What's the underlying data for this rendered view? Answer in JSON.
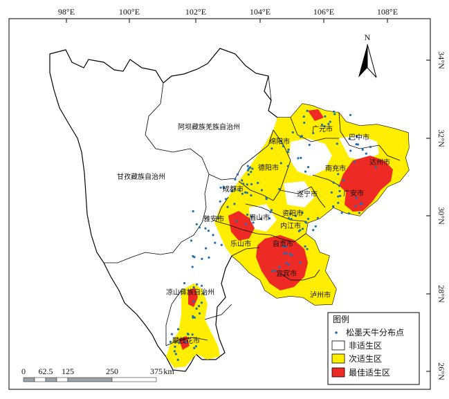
{
  "axes": {
    "top_ticks": [
      "98°E",
      "100°E",
      "102°E",
      "104°E",
      "106°E",
      "108°E"
    ],
    "right_ticks": [
      "34°N",
      "32°N",
      "30°N",
      "28°N",
      "26°N"
    ]
  },
  "north_arrow": {
    "label": "N"
  },
  "regions": {
    "aba": "阿坝藏族羌族自治州",
    "ganzi": "甘孜藏族自治州",
    "liangshan": "凉山彝族自治州",
    "panzhihua": "攀枝花市",
    "guangyuan": "广元市",
    "bazhong": "巴中市",
    "mianyang": "绵阳市",
    "dazhou": "达州市",
    "nanchong": "南充市",
    "deyang": "德阳市",
    "chengdu": "成都市",
    "suining": "遂宁市",
    "guangan": "广安市",
    "yaan": "雅安市",
    "meishan": "眉山市",
    "ziyang": "资阳市",
    "neijiang": "内江市",
    "leshan": "乐山市",
    "zigong": "自贡市",
    "yibin": "宜宾市",
    "luzhou": "泸州市"
  },
  "scale_bar": {
    "labels": [
      "0",
      "62.5",
      "125",
      "250",
      "375"
    ],
    "unit": "km"
  },
  "legend": {
    "title": "图例",
    "items": [
      {
        "label": "松墨天牛分布点",
        "color": "#1f6fb2"
      },
      {
        "label": "非适生区",
        "color": "#ffffff"
      },
      {
        "label": "次适生区",
        "color": "#ffee00"
      },
      {
        "label": "最佳适生区",
        "color": "#ee2a24"
      }
    ]
  }
}
